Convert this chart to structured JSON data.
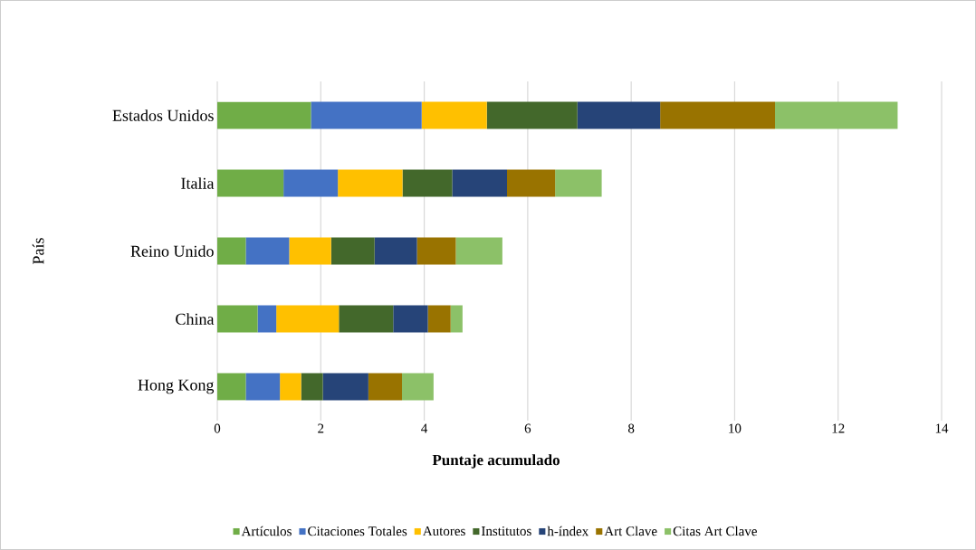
{
  "chart_data": {
    "type": "bar",
    "orientation": "horizontal",
    "stacked": true,
    "xlabel": "Puntaje acumulado",
    "ylabel": "País",
    "categories": [
      "Estados Unidos",
      "Italia",
      "Reino Unido",
      "China",
      "Hong Kong"
    ],
    "series": [
      {
        "name": "Artículos",
        "color": "#70ad47",
        "values": [
          1.81,
          1.28,
          0.55,
          0.78,
          0.55
        ]
      },
      {
        "name": "Citaciones Totales",
        "color": "#4472c4",
        "values": [
          2.14,
          1.05,
          0.84,
          0.36,
          0.66
        ]
      },
      {
        "name": "Autores",
        "color": "#ffc000",
        "values": [
          1.26,
          1.25,
          0.81,
          1.21,
          0.41
        ]
      },
      {
        "name": "Institutos",
        "color": "#43682b",
        "values": [
          1.75,
          0.96,
          0.84,
          1.05,
          0.42
        ]
      },
      {
        "name": "h-índex",
        "color": "#264478",
        "values": [
          1.6,
          1.06,
          0.82,
          0.67,
          0.88
        ]
      },
      {
        "name": "Art Clave",
        "color": "#997300",
        "values": [
          2.22,
          0.93,
          0.75,
          0.44,
          0.65
        ]
      },
      {
        "name": "Citas Art Clave",
        "color": "#8cc168",
        "values": [
          2.37,
          0.9,
          0.9,
          0.23,
          0.61
        ]
      }
    ],
    "xlim": [
      0,
      14
    ],
    "xticks": [
      0,
      2,
      4,
      6,
      8,
      10,
      12,
      14
    ],
    "grid": "x",
    "legend": "bottom"
  }
}
